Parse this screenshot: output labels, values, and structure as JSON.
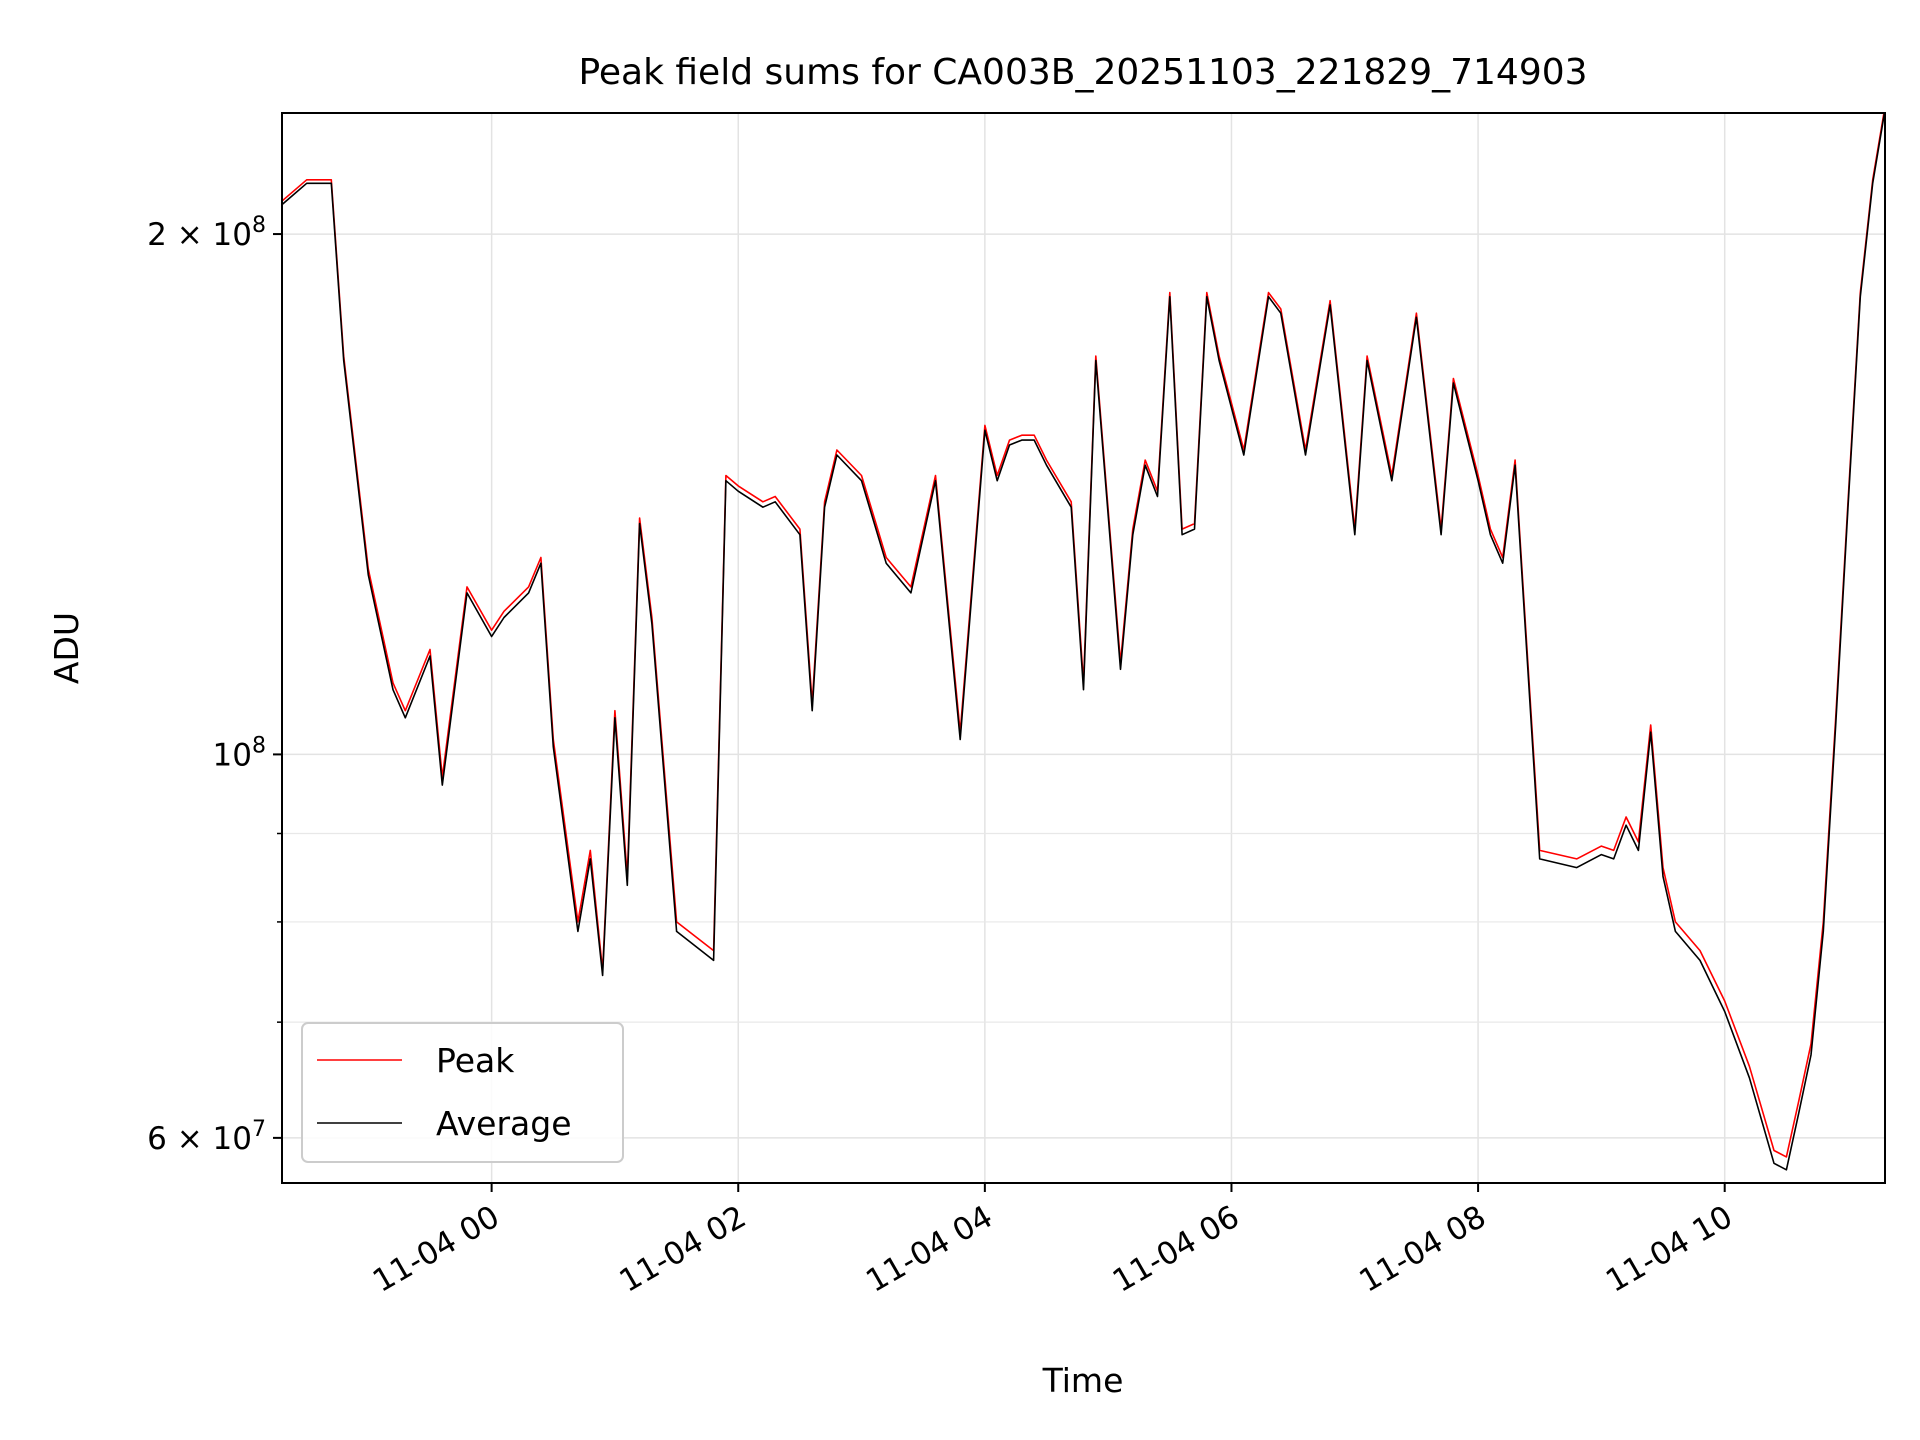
{
  "chart_data": {
    "type": "line",
    "title": "Peak field sums for CA003B_20251103_221829_714903",
    "xlabel": "Time",
    "ylabel": "ADU",
    "y_scale": "log",
    "ylim": [
      56500000,
      235000000
    ],
    "xlim": [
      "2025-11-03 22:18",
      "2025-11-04 11:18"
    ],
    "grid": true,
    "legend_position": "lower-left",
    "x_ticks": [
      {
        "value": "2025-11-04 00:00",
        "label": "11-04 00"
      },
      {
        "value": "2025-11-04 02:00",
        "label": "11-04 02"
      },
      {
        "value": "2025-11-04 04:00",
        "label": "11-04 04"
      },
      {
        "value": "2025-11-04 06:00",
        "label": "11-04 06"
      },
      {
        "value": "2025-11-04 08:00",
        "label": "11-04 08"
      },
      {
        "value": "2025-11-04 10:00",
        "label": "11-04 10"
      }
    ],
    "y_ticks": [
      {
        "value": 60000000,
        "mantissa": "6",
        "exponent": "7"
      },
      {
        "value": 100000000,
        "mantissa": "",
        "exponent": "8"
      },
      {
        "value": 200000000,
        "mantissa": "2",
        "exponent": "8"
      }
    ],
    "y_ticks_minor": [
      70000000,
      80000000,
      90000000
    ],
    "series": [
      {
        "name": "Peak",
        "color": "#ff0000",
        "x": [
          "2025-11-03 22:18",
          "2025-11-03 22:30",
          "2025-11-03 22:42",
          "2025-11-03 22:48",
          "2025-11-03 23:00",
          "2025-11-03 23:12",
          "2025-11-03 23:18",
          "2025-11-03 23:30",
          "2025-11-03 23:36",
          "2025-11-03 23:48",
          "2025-11-04 00:00",
          "2025-11-04 00:06",
          "2025-11-04 00:18",
          "2025-11-04 00:24",
          "2025-11-04 00:30",
          "2025-11-04 00:42",
          "2025-11-04 00:48",
          "2025-11-04 00:54",
          "2025-11-04 01:00",
          "2025-11-04 01:06",
          "2025-11-04 01:12",
          "2025-11-04 01:18",
          "2025-11-04 01:30",
          "2025-11-04 01:48",
          "2025-11-04 01:54",
          "2025-11-04 02:00",
          "2025-11-04 02:12",
          "2025-11-04 02:18",
          "2025-11-04 02:30",
          "2025-11-04 02:36",
          "2025-11-04 02:42",
          "2025-11-04 02:48",
          "2025-11-04 03:00",
          "2025-11-04 03:12",
          "2025-11-04 03:24",
          "2025-11-04 03:36",
          "2025-11-04 03:48",
          "2025-11-04 04:00",
          "2025-11-04 04:06",
          "2025-11-04 04:12",
          "2025-11-04 04:18",
          "2025-11-04 04:24",
          "2025-11-04 04:30",
          "2025-11-04 04:42",
          "2025-11-04 04:48",
          "2025-11-04 04:54",
          "2025-11-04 05:06",
          "2025-11-04 05:12",
          "2025-11-04 05:18",
          "2025-11-04 05:24",
          "2025-11-04 05:30",
          "2025-11-04 05:36",
          "2025-11-04 05:42",
          "2025-11-04 05:48",
          "2025-11-04 05:54",
          "2025-11-04 06:06",
          "2025-11-04 06:18",
          "2025-11-04 06:24",
          "2025-11-04 06:36",
          "2025-11-04 06:48",
          "2025-11-04 07:00",
          "2025-11-04 07:06",
          "2025-11-04 07:18",
          "2025-11-04 07:30",
          "2025-11-04 07:42",
          "2025-11-04 07:48",
          "2025-11-04 08:00",
          "2025-11-04 08:06",
          "2025-11-04 08:12",
          "2025-11-04 08:18",
          "2025-11-04 08:30",
          "2025-11-04 08:48",
          "2025-11-04 09:00",
          "2025-11-04 09:06",
          "2025-11-04 09:12",
          "2025-11-04 09:18",
          "2025-11-04 09:24",
          "2025-11-04 09:30",
          "2025-11-04 09:36",
          "2025-11-04 09:48",
          "2025-11-04 10:00",
          "2025-11-04 10:12",
          "2025-11-04 10:24",
          "2025-11-04 10:30",
          "2025-11-04 10:36",
          "2025-11-04 10:42",
          "2025-11-04 10:48",
          "2025-11-04 10:54",
          "2025-11-04 11:00",
          "2025-11-04 11:06",
          "2025-11-04 11:12",
          "2025-11-04 11:18"
        ],
        "values": [
          209000000,
          215000000,
          215000000,
          170000000,
          128000000,
          110000000,
          106000000,
          115000000,
          97000000,
          125000000,
          118000000,
          121000000,
          125000000,
          130000000,
          102000000,
          80000000,
          88000000,
          75000000,
          106000000,
          85000000,
          137000000,
          120000000,
          80000000,
          77000000,
          145000000,
          143000000,
          140000000,
          141000000,
          135000000,
          107000000,
          140000000,
          150000000,
          145000000,
          130000000,
          125000000,
          145000000,
          103000000,
          155000000,
          145000000,
          152000000,
          153000000,
          153000000,
          148000000,
          140000000,
          110000000,
          170000000,
          113000000,
          135000000,
          148000000,
          142000000,
          185000000,
          135000000,
          136000000,
          185000000,
          170000000,
          150000000,
          185000000,
          181000000,
          150000000,
          183000000,
          135000000,
          170000000,
          145000000,
          180000000,
          135000000,
          165000000,
          145000000,
          135000000,
          130000000,
          148000000,
          88000000,
          87000000,
          88500000,
          88000000,
          92000000,
          89000000,
          104000000,
          86000000,
          80000000,
          77000000,
          72000000,
          66000000,
          59000000,
          58500000,
          63000000,
          68000000,
          80000000,
          105000000,
          140000000,
          185000000,
          215000000,
          237000000
        ]
      },
      {
        "name": "Average",
        "color": "#000000",
        "x": [
          "2025-11-03 22:18",
          "2025-11-03 22:30",
          "2025-11-03 22:42",
          "2025-11-03 22:48",
          "2025-11-03 23:00",
          "2025-11-03 23:12",
          "2025-11-03 23:18",
          "2025-11-03 23:30",
          "2025-11-03 23:36",
          "2025-11-03 23:48",
          "2025-11-04 00:00",
          "2025-11-04 00:06",
          "2025-11-04 00:18",
          "2025-11-04 00:24",
          "2025-11-04 00:30",
          "2025-11-04 00:42",
          "2025-11-04 00:48",
          "2025-11-04 00:54",
          "2025-11-04 01:00",
          "2025-11-04 01:06",
          "2025-11-04 01:12",
          "2025-11-04 01:18",
          "2025-11-04 01:30",
          "2025-11-04 01:48",
          "2025-11-04 01:54",
          "2025-11-04 02:00",
          "2025-11-04 02:12",
          "2025-11-04 02:18",
          "2025-11-04 02:30",
          "2025-11-04 02:36",
          "2025-11-04 02:42",
          "2025-11-04 02:48",
          "2025-11-04 03:00",
          "2025-11-04 03:12",
          "2025-11-04 03:24",
          "2025-11-04 03:36",
          "2025-11-04 03:48",
          "2025-11-04 04:00",
          "2025-11-04 04:06",
          "2025-11-04 04:12",
          "2025-11-04 04:18",
          "2025-11-04 04:24",
          "2025-11-04 04:30",
          "2025-11-04 04:42",
          "2025-11-04 04:48",
          "2025-11-04 04:54",
          "2025-11-04 05:06",
          "2025-11-04 05:12",
          "2025-11-04 05:18",
          "2025-11-04 05:24",
          "2025-11-04 05:30",
          "2025-11-04 05:36",
          "2025-11-04 05:42",
          "2025-11-04 05:48",
          "2025-11-04 05:54",
          "2025-11-04 06:06",
          "2025-11-04 06:18",
          "2025-11-04 06:24",
          "2025-11-04 06:36",
          "2025-11-04 06:48",
          "2025-11-04 07:00",
          "2025-11-04 07:06",
          "2025-11-04 07:18",
          "2025-11-04 07:30",
          "2025-11-04 07:42",
          "2025-11-04 07:48",
          "2025-11-04 08:00",
          "2025-11-04 08:06",
          "2025-11-04 08:12",
          "2025-11-04 08:18",
          "2025-11-04 08:30",
          "2025-11-04 08:48",
          "2025-11-04 09:00",
          "2025-11-04 09:06",
          "2025-11-04 09:12",
          "2025-11-04 09:18",
          "2025-11-04 09:24",
          "2025-11-04 09:30",
          "2025-11-04 09:36",
          "2025-11-04 09:48",
          "2025-11-04 10:00",
          "2025-11-04 10:12",
          "2025-11-04 10:24",
          "2025-11-04 10:30",
          "2025-11-04 10:36",
          "2025-11-04 10:42",
          "2025-11-04 10:48",
          "2025-11-04 10:54",
          "2025-11-04 11:00",
          "2025-11-04 11:06",
          "2025-11-04 11:12",
          "2025-11-04 11:18"
        ],
        "values": [
          208000000,
          214000000,
          214000000,
          169000000,
          127000000,
          109000000,
          105000000,
          114000000,
          96000000,
          124000000,
          117000000,
          120000000,
          124000000,
          129000000,
          101000000,
          79000000,
          87000000,
          74500000,
          105000000,
          84000000,
          136000000,
          119000000,
          79000000,
          76000000,
          144000000,
          142000000,
          139000000,
          140000000,
          134000000,
          106000000,
          139000000,
          149000000,
          144000000,
          129000000,
          124000000,
          144000000,
          102000000,
          154000000,
          144000000,
          151000000,
          152000000,
          152000000,
          147000000,
          139000000,
          109000000,
          169000000,
          112000000,
          134000000,
          147000000,
          141000000,
          184000000,
          134000000,
          135000000,
          184000000,
          169000000,
          149000000,
          184000000,
          180000000,
          149000000,
          182000000,
          134000000,
          169000000,
          144000000,
          179000000,
          134000000,
          164000000,
          144000000,
          134000000,
          129000000,
          147000000,
          87000000,
          86000000,
          87500000,
          87000000,
          91000000,
          88000000,
          103000000,
          85000000,
          79000000,
          76000000,
          71000000,
          65000000,
          58000000,
          57500000,
          62000000,
          67000000,
          79000000,
          104000000,
          139000000,
          184000000,
          214000000,
          236000000
        ]
      }
    ]
  }
}
